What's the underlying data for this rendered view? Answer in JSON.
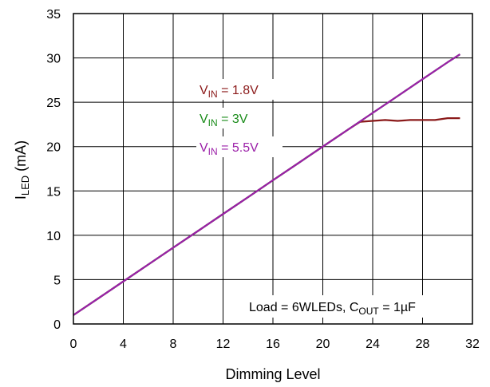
{
  "chart_data": {
    "type": "line",
    "title": "",
    "xlabel": "Dimming Level",
    "ylabel": {
      "main": "I",
      "sub": "LED",
      "suffix": " (mA)"
    },
    "xlim": [
      0,
      32
    ],
    "ylim": [
      0,
      35
    ],
    "x_ticks": [
      0,
      4,
      8,
      12,
      16,
      20,
      24,
      28,
      32
    ],
    "y_ticks": [
      0,
      5,
      10,
      15,
      20,
      25,
      30,
      35
    ],
    "grid": true,
    "annotation": {
      "text_main": "Load = 6WLEDs, C",
      "text_sub": "OUT",
      "text_suffix": " = 1µF"
    },
    "series": [
      {
        "name": {
          "main": "V",
          "sub": "IN",
          "suffix": " = 1.8V"
        },
        "color": "#8b1a1a",
        "x": [
          0,
          2,
          4,
          6,
          8,
          10,
          12,
          14,
          16,
          18,
          20,
          22,
          23,
          24,
          25,
          26,
          27,
          28,
          29,
          30,
          31
        ],
        "y": [
          1.0,
          2.9,
          4.8,
          6.7,
          8.6,
          10.5,
          12.4,
          14.3,
          16.2,
          18.1,
          20.0,
          21.9,
          22.8,
          22.9,
          23.0,
          22.9,
          23.0,
          23.0,
          23.0,
          23.2,
          23.2
        ]
      },
      {
        "name": {
          "main": "V",
          "sub": "IN",
          "suffix": " = 3V"
        },
        "color": "#1a8c1a",
        "x": [
          0,
          2,
          4,
          6,
          8,
          10,
          12,
          14,
          16,
          18,
          20,
          22,
          24,
          26,
          28,
          30,
          31
        ],
        "y": [
          1.0,
          2.9,
          4.8,
          6.7,
          8.6,
          10.5,
          12.4,
          14.3,
          16.2,
          18.1,
          20.0,
          21.9,
          23.8,
          25.7,
          27.6,
          29.5,
          30.4
        ]
      },
      {
        "name": {
          "main": "V",
          "sub": "IN",
          "suffix": " = 5.5V"
        },
        "color": "#9b1fa8",
        "x": [
          0,
          2,
          4,
          6,
          8,
          10,
          12,
          14,
          16,
          18,
          20,
          22,
          24,
          26,
          28,
          30,
          31
        ],
        "y": [
          1.0,
          2.9,
          4.8,
          6.7,
          8.6,
          10.5,
          12.4,
          14.3,
          16.2,
          18.1,
          20.0,
          21.9,
          23.8,
          25.7,
          27.6,
          29.5,
          30.4
        ]
      }
    ]
  }
}
